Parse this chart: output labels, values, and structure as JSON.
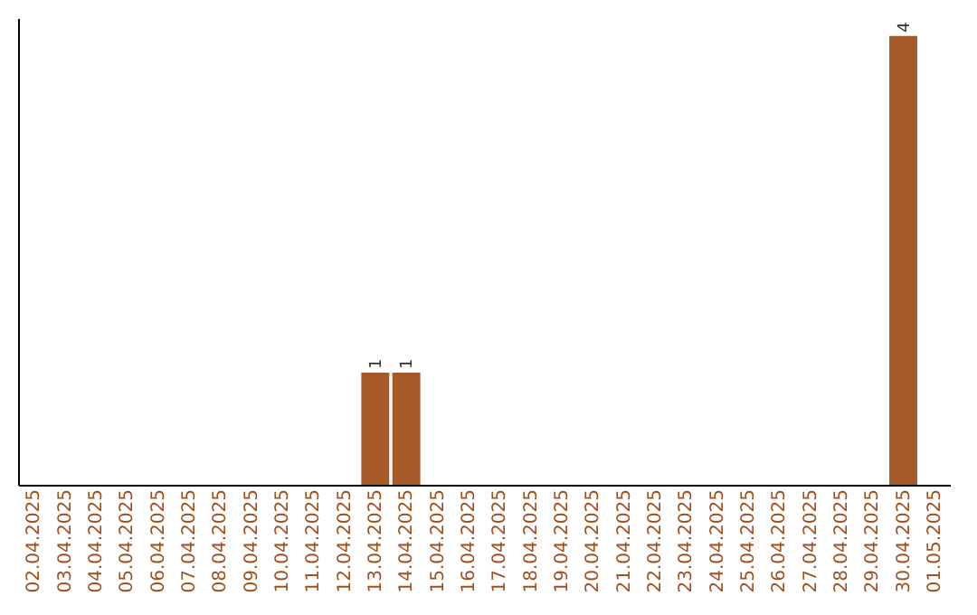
{
  "chart_data": {
    "type": "bar",
    "categories": [
      "02.04.2025",
      "03.04.2025",
      "04.04.2025",
      "05.04.2025",
      "06.04.2025",
      "07.04.2025",
      "08.04.2025",
      "09.04.2025",
      "10.04.2025",
      "11.04.2025",
      "12.04.2025",
      "13.04.2025",
      "14.04.2025",
      "15.04.2025",
      "16.04.2025",
      "17.04.2025",
      "18.04.2025",
      "19.04.2025",
      "20.04.2025",
      "21.04.2025",
      "22.04.2025",
      "23.04.2025",
      "24.04.2025",
      "25.04.2025",
      "26.04.2025",
      "27.04.2025",
      "28.04.2025",
      "29.04.2025",
      "30.04.2025",
      "01.05.2025"
    ],
    "values": [
      0,
      0,
      0,
      0,
      0,
      0,
      0,
      0,
      0,
      0,
      0,
      1,
      1,
      0,
      0,
      0,
      0,
      0,
      0,
      0,
      0,
      0,
      0,
      0,
      0,
      0,
      0,
      0,
      4,
      0
    ],
    "value_labels": [
      null,
      null,
      null,
      null,
      null,
      null,
      null,
      null,
      null,
      null,
      null,
      "1",
      "1",
      null,
      null,
      null,
      null,
      null,
      null,
      null,
      null,
      null,
      null,
      null,
      null,
      null,
      null,
      null,
      "4",
      null
    ],
    "color": "#a65a28",
    "grid": false,
    "tick_labels": "x"
  }
}
